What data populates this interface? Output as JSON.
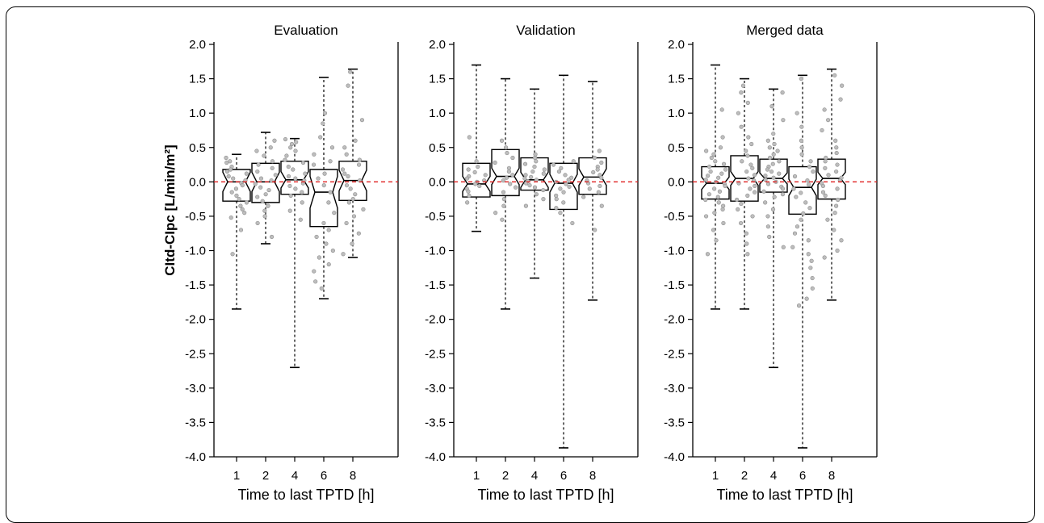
{
  "chart_data": [
    {
      "type": "box",
      "title": "Evaluation",
      "xlabel": "Time to last TPTD [h]",
      "ylabel": "CItd-CIpc [L/min/m²]",
      "ylim": [
        -4.0,
        2.0
      ],
      "yticks": [
        "2.0",
        "1.5",
        "1.0",
        "0.5",
        "0.0",
        "-0.5",
        "-1.0",
        "-1.5",
        "-2.0",
        "-2.5",
        "-3.0",
        "-3.5",
        "-4.0"
      ],
      "categories": [
        "1",
        "2",
        "4",
        "6",
        "8"
      ],
      "reference_line": {
        "y": 0.0,
        "color": "#e02020",
        "style": "dashed"
      },
      "boxes": [
        {
          "whisker_low": -1.85,
          "q1": -0.28,
          "median": 0.0,
          "q3": 0.18,
          "whisker_high": 0.4,
          "notch": 0.14,
          "points": [
            0.35,
            0.3,
            0.28,
            0.22,
            0.18,
            0.15,
            0.12,
            0.08,
            0.05,
            0.02,
            -0.02,
            -0.05,
            -0.1,
            -0.15,
            -0.2,
            -0.25,
            -0.3,
            -0.35,
            -0.4,
            -0.45,
            -0.52,
            -0.7,
            -1.05
          ]
        },
        {
          "whisker_low": -0.9,
          "q1": -0.3,
          "median": 0.0,
          "q3": 0.27,
          "whisker_high": 0.72,
          "notch": 0.14,
          "points": [
            0.6,
            0.5,
            0.45,
            0.38,
            0.3,
            0.25,
            0.2,
            0.15,
            0.1,
            0.05,
            0.02,
            -0.03,
            -0.08,
            -0.12,
            -0.18,
            -0.22,
            -0.28,
            -0.35,
            -0.42,
            -0.5,
            -0.6,
            -0.8
          ]
        },
        {
          "whisker_low": -2.7,
          "q1": -0.18,
          "median": 0.03,
          "q3": 0.3,
          "whisker_high": 0.63,
          "notch": 0.12,
          "points": [
            0.62,
            0.58,
            0.55,
            0.5,
            0.45,
            0.38,
            0.32,
            0.28,
            0.22,
            0.18,
            0.12,
            0.08,
            0.05,
            0.02,
            -0.02,
            -0.06,
            -0.1,
            -0.15,
            -0.2,
            -0.3,
            -0.42,
            -0.55
          ]
        },
        {
          "whisker_low": -1.7,
          "q1": -0.65,
          "median": -0.15,
          "q3": 0.18,
          "whisker_high": 1.52,
          "notch": 0.23,
          "points": [
            1.0,
            0.85,
            0.65,
            0.5,
            0.4,
            0.3,
            0.25,
            0.12,
            0.05,
            -0.05,
            -0.15,
            -0.3,
            -0.45,
            -0.6,
            -0.7,
            -0.8,
            -0.9,
            -1.0,
            -1.1,
            -1.2,
            -1.3,
            -1.45,
            -1.55
          ]
        },
        {
          "whisker_low": -1.1,
          "q1": -0.27,
          "median": 0.02,
          "q3": 0.3,
          "whisker_high": 1.64,
          "notch": 0.15,
          "points": [
            1.6,
            1.4,
            0.9,
            0.6,
            0.5,
            0.4,
            0.32,
            0.25,
            0.18,
            0.12,
            0.08,
            0.02,
            -0.05,
            -0.1,
            -0.18,
            -0.25,
            -0.3,
            -0.4,
            -0.5,
            -0.6,
            -0.75,
            -0.9,
            -1.05
          ]
        }
      ]
    },
    {
      "type": "box",
      "title": "Validation",
      "xlabel": "Time to last TPTD [h]",
      "ylabel": "",
      "ylim": [
        -4.0,
        2.0
      ],
      "yticks": [
        "2.0",
        "1.5",
        "1.0",
        "0.5",
        "0.0",
        "-0.5",
        "-1.0",
        "-1.5",
        "-2.0",
        "-2.5",
        "-3.0",
        "-3.5",
        "-4.0"
      ],
      "categories": [
        "1",
        "2",
        "4",
        "6",
        "8"
      ],
      "reference_line": {
        "y": 0.0,
        "color": "#e02020",
        "style": "dashed"
      },
      "boxes": [
        {
          "whisker_low": -0.72,
          "q1": -0.22,
          "median": -0.03,
          "q3": 0.27,
          "whisker_high": 1.7,
          "notch": 0.11,
          "points": [
            0.65,
            0.3,
            0.22,
            0.18,
            0.14,
            0.1,
            0.08,
            0.05,
            0.02,
            0.0,
            -0.03,
            -0.06,
            -0.1,
            -0.14,
            -0.2,
            -0.3
          ]
        },
        {
          "whisker_low": -1.85,
          "q1": -0.2,
          "median": 0.08,
          "q3": 0.47,
          "whisker_high": 1.5,
          "notch": 0.12,
          "points": [
            0.6,
            0.5,
            0.42,
            0.35,
            0.28,
            0.2,
            0.15,
            0.1,
            0.06,
            0.02,
            -0.03,
            -0.08,
            -0.15,
            -0.25,
            -0.35,
            -0.45,
            -0.55
          ]
        },
        {
          "whisker_low": -1.4,
          "q1": -0.12,
          "median": 0.03,
          "q3": 0.35,
          "whisker_high": 1.35,
          "notch": 0.11,
          "points": [
            0.4,
            0.35,
            0.3,
            0.26,
            0.22,
            0.18,
            0.15,
            0.12,
            0.1,
            0.07,
            0.05,
            0.03,
            0.01,
            -0.02,
            -0.05,
            -0.08,
            -0.12,
            -0.18,
            -0.25,
            -0.35
          ]
        },
        {
          "whisker_low": -3.87,
          "q1": -0.4,
          "median": -0.02,
          "q3": 0.27,
          "whisker_high": 1.55,
          "notch": 0.13,
          "points": [
            0.3,
            0.25,
            0.2,
            0.15,
            0.1,
            0.06,
            0.03,
            0.0,
            -0.03,
            -0.07,
            -0.1,
            -0.15,
            -0.2,
            -0.25,
            -0.3,
            -0.38,
            -0.45,
            -0.6
          ]
        },
        {
          "whisker_low": -1.72,
          "q1": -0.18,
          "median": 0.07,
          "q3": 0.35,
          "whisker_high": 1.46,
          "notch": 0.12,
          "points": [
            0.45,
            0.35,
            0.28,
            0.22,
            0.18,
            0.14,
            0.1,
            0.06,
            0.02,
            -0.02,
            -0.06,
            -0.1,
            -0.15,
            -0.22,
            -0.35,
            -0.7
          ]
        }
      ]
    },
    {
      "type": "box",
      "title": "Merged data",
      "xlabel": "Time to last TPTD [h]",
      "ylabel": "",
      "ylim": [
        -4.0,
        2.0
      ],
      "yticks": [
        "2.0",
        "1.5",
        "1.0",
        "0.5",
        "0.0",
        "-0.5",
        "-1.0",
        "-1.5",
        "-2.0",
        "-2.5",
        "-3.0",
        "-3.5",
        "-4.0"
      ],
      "categories": [
        "1",
        "2",
        "4",
        "6",
        "8"
      ],
      "reference_line": {
        "y": 0.0,
        "color": "#e02020",
        "style": "dashed"
      },
      "boxes": [
        {
          "whisker_low": -1.85,
          "q1": -0.25,
          "median": -0.02,
          "q3": 0.22,
          "whisker_high": 1.7,
          "notch": 0.09,
          "points": [
            1.05,
            0.65,
            0.5,
            0.45,
            0.4,
            0.35,
            0.3,
            0.26,
            0.22,
            0.18,
            0.15,
            0.12,
            0.09,
            0.06,
            0.03,
            0.0,
            -0.03,
            -0.06,
            -0.1,
            -0.14,
            -0.18,
            -0.22,
            -0.26,
            -0.3,
            -0.35,
            -0.4,
            -0.45,
            -0.5,
            -0.6,
            -0.7,
            -0.85,
            -1.05
          ]
        },
        {
          "whisker_low": -1.85,
          "q1": -0.28,
          "median": 0.05,
          "q3": 0.38,
          "whisker_high": 1.5,
          "notch": 0.1,
          "points": [
            1.4,
            1.3,
            1.15,
            1.0,
            0.8,
            0.65,
            0.55,
            0.45,
            0.38,
            0.3,
            0.25,
            0.2,
            0.15,
            0.1,
            0.05,
            0.02,
            -0.02,
            -0.06,
            -0.1,
            -0.15,
            -0.2,
            -0.26,
            -0.32,
            -0.4,
            -0.5,
            -0.6,
            -0.75,
            -0.9,
            -1.05
          ]
        },
        {
          "whisker_low": -2.7,
          "q1": -0.15,
          "median": 0.05,
          "q3": 0.33,
          "whisker_high": 1.35,
          "notch": 0.08,
          "points": [
            1.3,
            1.1,
            0.9,
            0.7,
            0.6,
            0.55,
            0.5,
            0.45,
            0.4,
            0.35,
            0.3,
            0.26,
            0.22,
            0.18,
            0.15,
            0.12,
            0.09,
            0.06,
            0.03,
            0.0,
            -0.03,
            -0.07,
            -0.1,
            -0.14,
            -0.18,
            -0.22,
            -0.3,
            -0.4,
            -0.5,
            -0.65,
            -0.8,
            -0.95
          ]
        },
        {
          "whisker_low": -3.87,
          "q1": -0.47,
          "median": -0.08,
          "q3": 0.22,
          "whisker_high": 1.55,
          "notch": 0.12,
          "points": [
            1.5,
            1.0,
            0.8,
            0.6,
            0.5,
            0.4,
            0.3,
            0.22,
            0.15,
            0.08,
            0.02,
            -0.04,
            -0.1,
            -0.16,
            -0.22,
            -0.3,
            -0.38,
            -0.46,
            -0.55,
            -0.65,
            -0.75,
            -0.85,
            -0.95,
            -1.05,
            -1.15,
            -1.25,
            -1.4,
            -1.55,
            -1.7,
            -1.8
          ]
        },
        {
          "whisker_low": -1.72,
          "q1": -0.25,
          "median": 0.05,
          "q3": 0.33,
          "whisker_high": 1.64,
          "notch": 0.09,
          "points": [
            1.55,
            1.4,
            1.2,
            1.05,
            0.9,
            0.75,
            0.6,
            0.5,
            0.42,
            0.35,
            0.3,
            0.25,
            0.2,
            0.15,
            0.1,
            0.06,
            0.02,
            -0.02,
            -0.06,
            -0.1,
            -0.15,
            -0.2,
            -0.26,
            -0.35,
            -0.45,
            -0.55,
            -0.7,
            -0.85,
            -1.0,
            -1.1
          ]
        }
      ]
    }
  ]
}
